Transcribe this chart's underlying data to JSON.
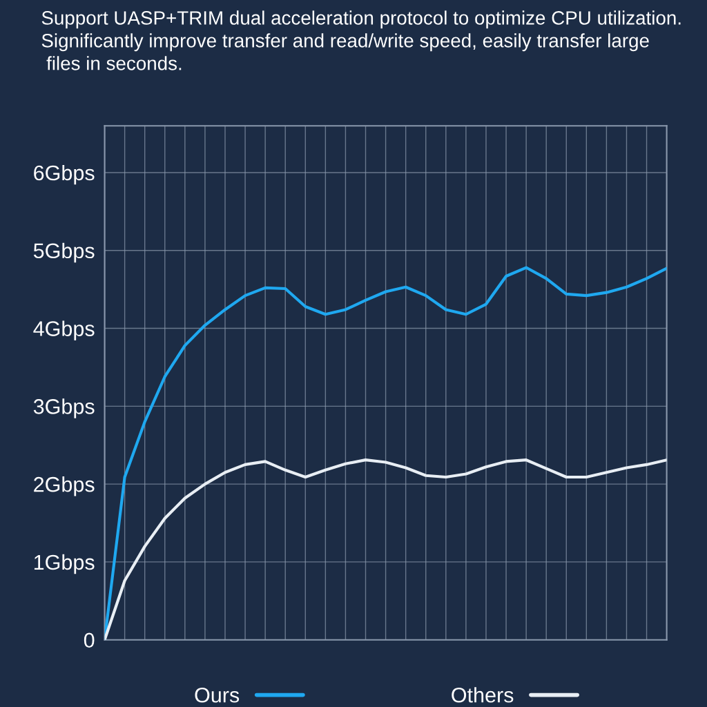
{
  "chart_data": {
    "type": "line",
    "title": "Support UASP+TRIM dual acceleration protocol to optimize CPU utilization.\nSignificantly improve transfer and read/write speed, easily transfer large\n files in seconds.",
    "categories": [
      null,
      null,
      null,
      null,
      null,
      null,
      null,
      null,
      null,
      null,
      null,
      null,
      null,
      null,
      null,
      null,
      null,
      null,
      null,
      null,
      null,
      null,
      null,
      null,
      null,
      null,
      null,
      null,
      null
    ],
    "series": [
      {
        "name": "Ours",
        "color": "#1fa8f0",
        "values": [
          0,
          2.09,
          2.8,
          3.38,
          3.78,
          4.04,
          4.24,
          4.42,
          4.52,
          4.51,
          4.28,
          4.18,
          4.24,
          4.36,
          4.47,
          4.53,
          4.42,
          4.24,
          4.18,
          4.31,
          4.67,
          4.78,
          4.64,
          4.44,
          4.42,
          4.46,
          4.53,
          4.64,
          4.77
        ]
      },
      {
        "name": "Others",
        "color": "#e8eef4",
        "values": [
          0,
          0.76,
          1.2,
          1.56,
          1.82,
          2.0,
          2.15,
          2.25,
          2.29,
          2.18,
          2.09,
          2.18,
          2.26,
          2.31,
          2.28,
          2.21,
          2.11,
          2.09,
          2.13,
          2.22,
          2.29,
          2.31,
          2.2,
          2.09,
          2.09,
          2.15,
          2.21,
          2.25,
          2.31
        ]
      }
    ],
    "ylim": [
      0,
      6.6
    ],
    "yticks": [
      0,
      {
        "value": 1,
        "label": "1Gbps"
      },
      {
        "value": 2,
        "label": "2Gbps"
      },
      {
        "value": 3,
        "label": "3Gbps"
      },
      {
        "value": 4,
        "label": "4Gbps"
      },
      {
        "value": 5,
        "label": "5Gbps"
      },
      {
        "value": 6,
        "label": "6Gbps"
      }
    ],
    "grid": true,
    "legend": "bottom",
    "line_style": "solid",
    "marker": "none"
  }
}
